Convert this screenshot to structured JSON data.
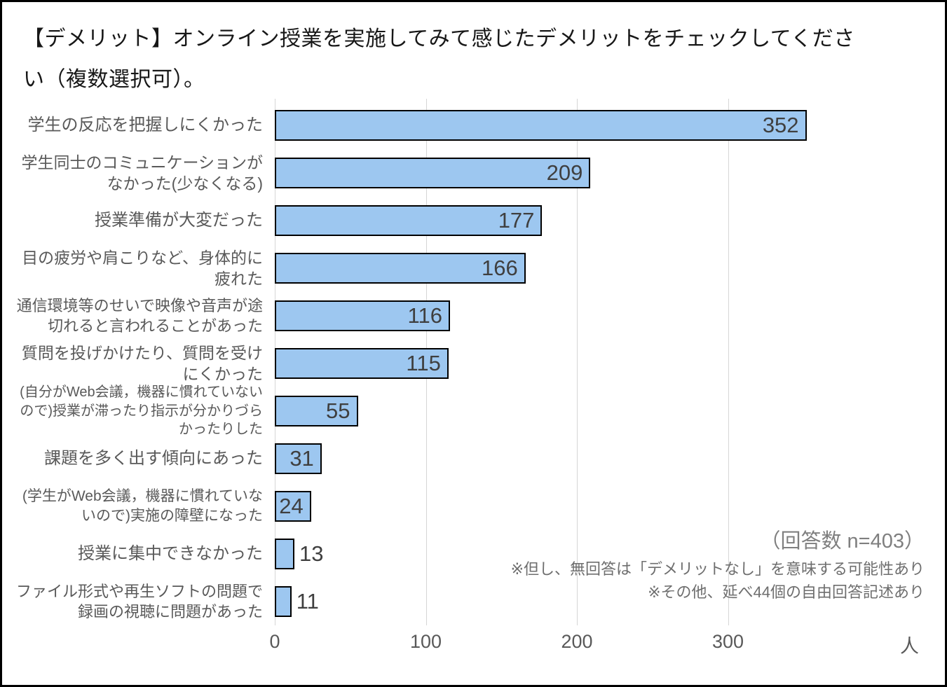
{
  "title": "【デメリット】オンライン授業を実施してみて感じたデメリットをチェックしてください（複数選択可）。",
  "chart_data": {
    "type": "bar",
    "orientation": "horizontal",
    "title": "【デメリット】オンライン授業を実施してみて感じたデメリットをチェックしてください（複数選択可）。",
    "categories": [
      "学生の反応を把握しにくかった",
      "学生同士のコミュニケーションがなかった(少なくなる)",
      "授業準備が大変だった",
      "目の疲労や肩こりなど、身体的に疲れた",
      "通信環境等のせいで映像や音声が途切れると言われることがあった",
      "質問を投げかけたり、質問を受けにくかった",
      "(自分がWeb会議，機器に慣れていないので)授業が滞ったり指示が分かりづらかったりした",
      "課題を多く出す傾向にあった",
      "(学生がWeb会議，機器に慣れていないので)実施の障壁になった",
      "授業に集中できなかった",
      "ファイル形式や再生ソフトの問題で録画の視聴に問題があった"
    ],
    "values": [
      352,
      209,
      177,
      166,
      116,
      115,
      55,
      31,
      24,
      13,
      11
    ],
    "x_ticks": [
      0,
      100,
      200,
      300
    ],
    "xlim": [
      0,
      427
    ],
    "x_unit": "人",
    "grid": true,
    "bar_color": "#9DC7F0",
    "bar_border_color": "#000000",
    "value_label_color": "#3F3F3F",
    "annotations": {
      "respondents": "（回答数 n=403）",
      "note1": "※但し、無回答は「デメリットなし」を意味する可能性あり",
      "note2": "※その他、延べ44個の自由回答記述あり"
    }
  }
}
